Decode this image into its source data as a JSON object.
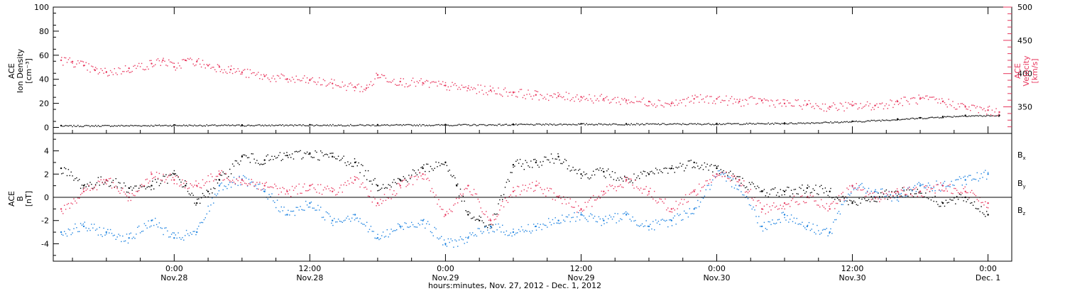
{
  "chart_data": [
    {
      "type": "scatter",
      "panel": "upper",
      "ylabel": [
        "ACE",
        "Ion Density",
        "[cm⁻³]"
      ],
      "ylim": [
        -5,
        100
      ],
      "yticks": [
        0,
        20,
        40,
        60,
        80,
        100
      ],
      "ylabel_right": [
        "ACE",
        "Velocity",
        "[km/s]"
      ],
      "ylim_right": [
        310,
        500
      ],
      "yticks_right": [
        350,
        400,
        450,
        500
      ],
      "series": [
        {
          "color": "#000000",
          "axis": "left",
          "x": [
            -10,
            0,
            6,
            12,
            18,
            24,
            30,
            36,
            40,
            48,
            54,
            60,
            64,
            66,
            68,
            70,
            73
          ],
          "y": [
            1.5,
            2.0,
            2.0,
            2.2,
            2.2,
            2.3,
            2.6,
            3.0,
            3.0,
            3.2,
            3.6,
            5.0,
            7.0,
            8.0,
            9.0,
            10.0,
            10.0
          ]
        },
        {
          "color": "#e8365d",
          "axis": "right",
          "x": [
            -10,
            -9,
            -8,
            -7,
            -6,
            -4,
            -2,
            -1,
            0,
            1,
            2,
            3,
            4,
            5,
            6,
            8,
            10,
            12,
            14,
            16,
            17,
            18,
            20,
            22,
            24,
            26,
            28,
            30,
            32,
            34,
            36,
            38,
            40,
            42,
            44,
            46,
            48,
            50,
            52,
            54,
            56,
            58,
            60,
            62,
            64,
            66,
            68,
            70,
            72,
            73
          ],
          "y": [
            420,
            418,
            412,
            405,
            402,
            408,
            415,
            420,
            410,
            420,
            418,
            412,
            410,
            406,
            402,
            396,
            392,
            390,
            385,
            380,
            378,
            398,
            388,
            386,
            382,
            378,
            375,
            372,
            368,
            366,
            365,
            362,
            360,
            358,
            355,
            362,
            362,
            358,
            360,
            355,
            354,
            350,
            352,
            352,
            358,
            362,
            358,
            350,
            345,
            342
          ]
        }
      ]
    },
    {
      "type": "scatter",
      "panel": "lower",
      "ylabel": [
        "ACE",
        "B",
        "[nT]"
      ],
      "ylim": [
        -5.5,
        5.5
      ],
      "yticks": [
        -4,
        -2,
        0,
        2,
        4
      ],
      "zero_line": true,
      "legend_position": "right",
      "xlabel": "hours:minutes, Nov. 27, 2012 - Dec.  1, 2012",
      "xlim": [
        -10.7,
        74.1
      ],
      "xticks": [
        0,
        12,
        24,
        36,
        48,
        60,
        72
      ],
      "xtick_labels": [
        [
          "0:00",
          "Nov.28"
        ],
        [
          "12:00",
          "Nov.28"
        ],
        [
          "0:00",
          "Nov.29"
        ],
        [
          "12:00",
          "Nov.29"
        ],
        [
          "0:00",
          "Nov.30"
        ],
        [
          "12:00",
          "Nov.30"
        ],
        [
          "0:00",
          "Dec. 1"
        ]
      ],
      "series": [
        {
          "name": "Bx",
          "name_base": "B",
          "name_sub": "x",
          "color": "#000000",
          "x": [
            -10,
            -8,
            -6,
            -4,
            -2,
            0,
            1,
            2,
            3,
            4,
            6,
            8,
            10,
            12,
            14,
            16,
            18,
            20,
            22,
            24,
            25,
            26,
            27,
            28,
            30,
            32,
            34,
            36,
            38,
            40,
            42,
            44,
            46,
            48,
            50,
            52,
            54,
            56,
            58,
            60,
            62,
            64,
            66,
            68,
            70,
            72
          ],
          "y": [
            2.5,
            1.0,
            1.5,
            0.8,
            1.0,
            2.0,
            1.0,
            -0.5,
            0.5,
            1.5,
            3.5,
            3.2,
            3.6,
            3.8,
            3.5,
            3.0,
            1.0,
            1.5,
            2.5,
            3.0,
            1.0,
            -1.5,
            -2.0,
            -2.5,
            2.8,
            3.0,
            3.5,
            2.0,
            2.2,
            1.5,
            2.0,
            2.5,
            3.0,
            2.5,
            1.5,
            0.5,
            0.5,
            0.8,
            0.5,
            -0.5,
            0.0,
            0.5,
            0.5,
            -0.5,
            0.0,
            -1.5
          ]
        },
        {
          "name": "By",
          "name_base": "B",
          "name_sub": "y",
          "color": "#1c82e0",
          "x": [
            -10,
            -8,
            -6,
            -4,
            -2,
            0,
            2,
            4,
            6,
            8,
            10,
            12,
            14,
            16,
            18,
            20,
            22,
            24,
            26,
            28,
            30,
            32,
            34,
            36,
            38,
            40,
            42,
            44,
            46,
            48,
            50,
            52,
            54,
            56,
            58,
            60,
            62,
            64,
            66,
            68,
            70,
            72
          ],
          "y": [
            -3.0,
            -2.5,
            -3.0,
            -3.5,
            -2.0,
            -3.5,
            -3.0,
            1.0,
            1.5,
            0.5,
            -1.5,
            -0.5,
            -2.0,
            -1.5,
            -3.5,
            -2.5,
            -2.0,
            -4.0,
            -3.5,
            -2.5,
            -3.0,
            -2.5,
            -2.0,
            -1.5,
            -2.0,
            -1.5,
            -2.5,
            -2.0,
            -1.0,
            2.0,
            1.0,
            -2.5,
            -1.5,
            -2.5,
            -3.0,
            1.0,
            0.5,
            0.0,
            1.0,
            1.0,
            1.5,
            2.0
          ]
        },
        {
          "name": "Bz",
          "name_base": "B",
          "name_sub": "z",
          "color": "#e8365d",
          "x": [
            -10,
            -8,
            -6,
            -4,
            -2,
            0,
            2,
            4,
            6,
            8,
            10,
            12,
            14,
            16,
            18,
            20,
            22,
            24,
            26,
            28,
            30,
            32,
            34,
            36,
            38,
            40,
            42,
            44,
            46,
            48,
            50,
            52,
            54,
            56,
            58,
            60,
            62,
            64,
            66,
            68,
            70,
            72
          ],
          "y": [
            -1.0,
            0.5,
            1.5,
            0.0,
            2.0,
            1.5,
            1.0,
            2.0,
            1.5,
            1.0,
            0.5,
            1.0,
            0.5,
            1.5,
            -0.5,
            1.0,
            2.0,
            -1.5,
            1.0,
            -2.0,
            0.5,
            1.0,
            0.0,
            -1.0,
            0.5,
            1.5,
            0.5,
            -1.0,
            0.5,
            2.0,
            1.5,
            -1.0,
            -0.5,
            0.0,
            -1.0,
            1.0,
            0.0,
            0.5,
            0.5,
            1.0,
            0.5,
            -0.5
          ]
        }
      ]
    }
  ]
}
